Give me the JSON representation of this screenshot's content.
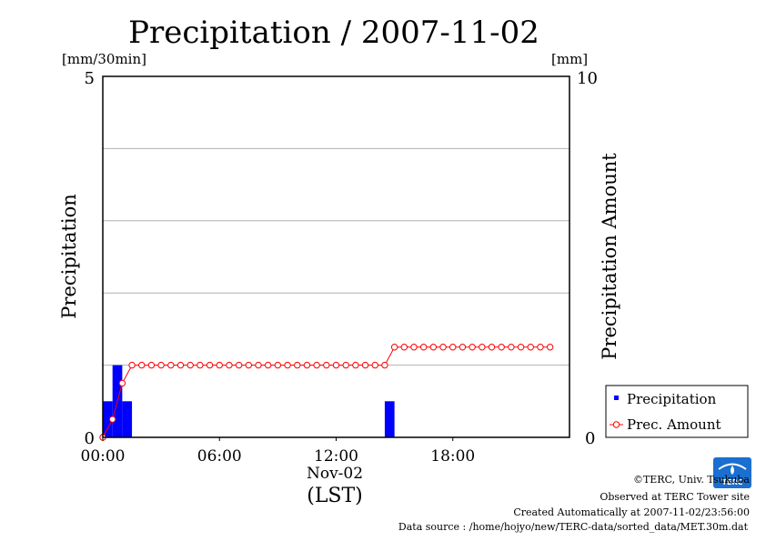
{
  "chart_data": {
    "type": "bar+line",
    "title": "Precipitation / 2007-11-02",
    "y_left": {
      "label": "Precipitation",
      "unit": "[mm/30min]",
      "ylim": [
        0,
        5
      ],
      "ticks": [
        "5",
        "0"
      ]
    },
    "y_right": {
      "label": "Precipitation Amount",
      "unit": "[mm]",
      "ylim": [
        0,
        10
      ],
      "ticks": [
        "10",
        "0"
      ]
    },
    "x": {
      "ticks": [
        "00:00",
        "06:00",
        "12:00",
        "18:00"
      ],
      "date_label": "Nov-02",
      "xlabel": "(LST)",
      "range_hours": [
        0,
        24
      ]
    },
    "grid": "horizontal",
    "legend": {
      "placement": "right",
      "entries": [
        "Precipitation",
        "Prec. Amount"
      ]
    },
    "series": [
      {
        "name": "Precipitation",
        "type": "bar",
        "color": "#0000ff",
        "bins": [
          {
            "start": "00:00",
            "end": "00:30",
            "value": 0.5
          },
          {
            "start": "00:30",
            "end": "01:00",
            "value": 1.0
          },
          {
            "start": "01:00",
            "end": "01:30",
            "value": 0.5
          },
          {
            "start": "14:30",
            "end": "15:00",
            "value": 0.5
          }
        ]
      },
      {
        "name": "Prec. Amount",
        "type": "line",
        "color": "#ff0000",
        "x": [
          "00:00",
          "00:30",
          "01:00",
          "01:30",
          "02:00",
          "02:30",
          "03:00",
          "03:30",
          "04:00",
          "04:30",
          "05:00",
          "05:30",
          "06:00",
          "06:30",
          "07:00",
          "07:30",
          "08:00",
          "08:30",
          "09:00",
          "09:30",
          "10:00",
          "10:30",
          "11:00",
          "11:30",
          "12:00",
          "12:30",
          "13:00",
          "13:30",
          "14:00",
          "14:30",
          "15:00",
          "15:30",
          "16:00",
          "16:30",
          "17:00",
          "17:30",
          "18:00",
          "18:30",
          "19:00",
          "19:30",
          "20:00",
          "20:30",
          "21:00",
          "21:30",
          "22:00",
          "22:30",
          "23:00"
        ],
        "values": [
          0,
          0.5,
          1.5,
          2.0,
          2.0,
          2.0,
          2.0,
          2.0,
          2.0,
          2.0,
          2.0,
          2.0,
          2.0,
          2.0,
          2.0,
          2.0,
          2.0,
          2.0,
          2.0,
          2.0,
          2.0,
          2.0,
          2.0,
          2.0,
          2.0,
          2.0,
          2.0,
          2.0,
          2.0,
          2.0,
          2.5,
          2.5,
          2.5,
          2.5,
          2.5,
          2.5,
          2.5,
          2.5,
          2.5,
          2.5,
          2.5,
          2.5,
          2.5,
          2.5,
          2.5,
          2.5,
          2.5
        ]
      }
    ]
  },
  "footer": {
    "copyright": "©TERC, Univ. Tsukuba",
    "observed": "Observed at TERC Tower site",
    "created": "Created Automatically at 2007-11-02/23:56:00",
    "source": "Data source : /home/hojyo/new/TERC-data/sorted_data/MET.30m.dat",
    "logo_text": "TERC"
  }
}
